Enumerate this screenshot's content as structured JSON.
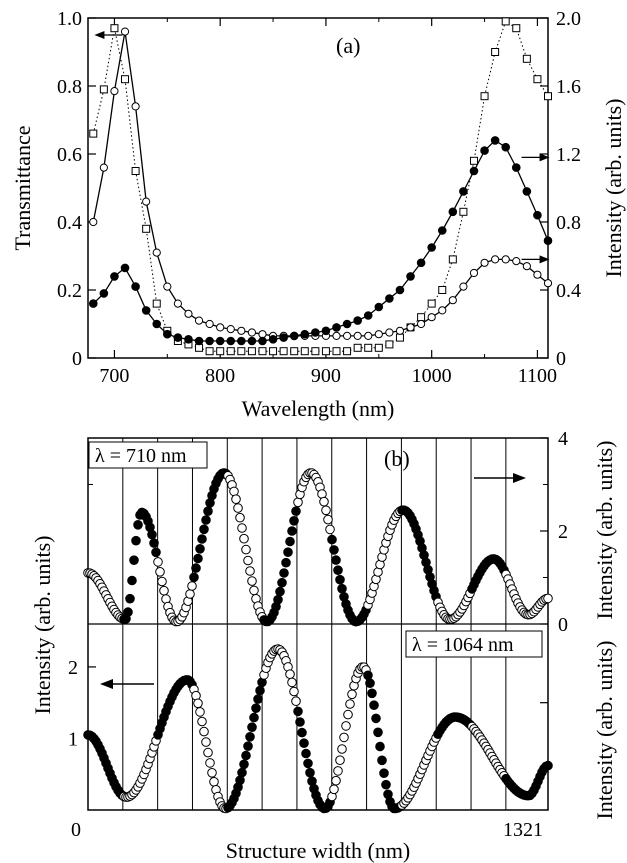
{
  "colors": {
    "ink": "#000000",
    "background": "#ffffff"
  },
  "chart_data": [
    {
      "panel": "(a)",
      "type": "line",
      "xlabel": "Wavelength  (nm)",
      "ylabel_left": "Transmittance",
      "ylabel_right": "Intensity  (arb. units)",
      "xlim": [
        675,
        1110
      ],
      "ylim_left": [
        0,
        1.0
      ],
      "ylim_right": [
        0,
        2.0
      ],
      "xticks": [
        700,
        800,
        900,
        1000,
        1100
      ],
      "yticks_left": [
        "0",
        "0.2",
        "0.4",
        "0.6",
        "0.8",
        "1.0"
      ],
      "yticks_right": [
        "0",
        "0.4",
        "0.8",
        "1.2",
        "1.6",
        "2.0"
      ],
      "x": [
        680,
        690,
        700,
        710,
        720,
        730,
        740,
        750,
        760,
        770,
        780,
        790,
        800,
        810,
        820,
        830,
        840,
        850,
        860,
        870,
        880,
        890,
        900,
        910,
        920,
        930,
        940,
        950,
        960,
        970,
        980,
        990,
        1000,
        1010,
        1020,
        1030,
        1040,
        1050,
        1060,
        1070,
        1080,
        1090,
        1100,
        1110
      ],
      "series": [
        {
          "axis": "left",
          "marker": "open-square",
          "line": "dotted",
          "values": [
            0.66,
            0.79,
            0.97,
            0.82,
            0.55,
            0.38,
            0.16,
            0.08,
            0.05,
            0.04,
            0.03,
            0.02,
            0.02,
            0.02,
            0.02,
            0.02,
            0.02,
            0.02,
            0.02,
            0.02,
            0.02,
            0.02,
            0.02,
            0.02,
            0.02,
            0.03,
            0.03,
            0.03,
            0.04,
            0.06,
            0.09,
            0.12,
            0.16,
            0.2,
            0.29,
            0.43,
            0.58,
            0.77,
            0.9,
            0.99,
            0.97,
            0.88,
            0.82,
            0.77
          ]
        },
        {
          "axis": "right",
          "marker": "open-circle",
          "line": "solid",
          "values": [
            0.8,
            1.12,
            1.57,
            1.92,
            1.48,
            0.92,
            0.62,
            0.42,
            0.32,
            0.26,
            0.22,
            0.2,
            0.18,
            0.17,
            0.16,
            0.15,
            0.14,
            0.13,
            0.13,
            0.13,
            0.13,
            0.13,
            0.13,
            0.13,
            0.13,
            0.13,
            0.13,
            0.14,
            0.15,
            0.16,
            0.18,
            0.2,
            0.24,
            0.28,
            0.34,
            0.42,
            0.5,
            0.56,
            0.58,
            0.58,
            0.57,
            0.54,
            0.49,
            0.44
          ]
        },
        {
          "axis": "right",
          "marker": "filled-circle",
          "line": "solid",
          "values": [
            0.32,
            0.38,
            0.48,
            0.53,
            0.42,
            0.28,
            0.2,
            0.14,
            0.12,
            0.11,
            0.1,
            0.1,
            0.1,
            0.1,
            0.1,
            0.1,
            0.1,
            0.11,
            0.12,
            0.13,
            0.14,
            0.15,
            0.16,
            0.18,
            0.2,
            0.22,
            0.25,
            0.3,
            0.35,
            0.4,
            0.48,
            0.56,
            0.65,
            0.75,
            0.86,
            0.98,
            1.1,
            1.22,
            1.28,
            1.24,
            1.12,
            0.98,
            0.84,
            0.69
          ]
        }
      ],
      "arrows": [
        {
          "direction": "left",
          "x": 700,
          "y_left": 0.95
        },
        {
          "direction": "right",
          "x": 1085,
          "y_left": 0.59
        },
        {
          "direction": "right",
          "x": 1085,
          "y_left": 0.29
        }
      ]
    },
    {
      "panel": "(b)",
      "type": "line",
      "xlabel": "Structure width  (nm)",
      "xlim": [
        0,
        1321
      ],
      "xtick_labels": [
        "0",
        "1321"
      ],
      "layer_boundaries": [
        100,
        200,
        300,
        400,
        500,
        600,
        700,
        800,
        900,
        1000,
        1100,
        1200
      ],
      "upper": {
        "label": "λ = 710 nm",
        "ylabel": "Intensity  (arb. units)",
        "ylim": [
          0,
          4
        ],
        "yticks": [
          "0",
          "2",
          "4"
        ],
        "peaks": [
          {
            "x": 0,
            "y": 1.1
          },
          {
            "x": 107,
            "y": 0.1
          },
          {
            "x": 154,
            "y": 2.4
          },
          {
            "x": 254,
            "y": 0.05
          },
          {
            "x": 391,
            "y": 3.25
          },
          {
            "x": 514,
            "y": 0.05
          },
          {
            "x": 640,
            "y": 3.25
          },
          {
            "x": 770,
            "y": 0.05
          },
          {
            "x": 905,
            "y": 2.45
          },
          {
            "x": 1040,
            "y": 0.1
          },
          {
            "x": 1165,
            "y": 1.4
          },
          {
            "x": 1265,
            "y": 0.2
          },
          {
            "x": 1321,
            "y": 0.55
          }
        ]
      },
      "lower": {
        "label": "λ = 1064 nm",
        "ylabel": "Intensity  (arb. units)",
        "ylim": [
          0,
          2.6
        ],
        "yticks": [
          "1",
          "2"
        ],
        "peaks": [
          {
            "x": 0,
            "y": 1.05
          },
          {
            "x": 110,
            "y": 0.18
          },
          {
            "x": 285,
            "y": 1.82
          },
          {
            "x": 395,
            "y": 0.02
          },
          {
            "x": 545,
            "y": 2.25
          },
          {
            "x": 680,
            "y": 0.02
          },
          {
            "x": 790,
            "y": 2.0
          },
          {
            "x": 880,
            "y": 0.02
          },
          {
            "x": 1055,
            "y": 1.3
          },
          {
            "x": 1265,
            "y": 0.2
          },
          {
            "x": 1321,
            "y": 0.62
          }
        ]
      }
    }
  ]
}
